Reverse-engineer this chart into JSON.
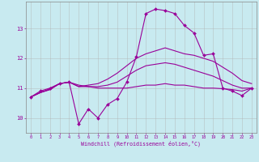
{
  "background_color": "#c8eaf0",
  "line_color": "#990099",
  "grid_color": "#b0b0b0",
  "xlabel": "Windchill (Refroidissement éolien,°C)",
  "xlim": [
    -0.5,
    23.5
  ],
  "ylim": [
    9.5,
    13.9
  ],
  "yticks": [
    10,
    11,
    12,
    13
  ],
  "xticks": [
    0,
    1,
    2,
    3,
    4,
    5,
    6,
    7,
    8,
    9,
    10,
    11,
    12,
    13,
    14,
    15,
    16,
    17,
    18,
    19,
    20,
    21,
    22,
    23
  ],
  "series1_x": [
    0,
    1,
    2,
    3,
    4,
    5,
    6,
    7,
    8,
    9,
    10,
    11,
    12,
    13,
    14,
    15,
    16,
    17,
    18,
    19,
    20,
    21,
    22,
    23
  ],
  "series1_y": [
    10.7,
    10.9,
    11.0,
    11.15,
    11.2,
    9.8,
    10.3,
    10.0,
    10.45,
    10.65,
    11.2,
    12.05,
    13.5,
    13.65,
    13.6,
    13.5,
    13.1,
    12.85,
    12.1,
    12.15,
    11.0,
    10.9,
    10.75,
    11.0
  ],
  "series2_x": [
    0,
    1,
    2,
    3,
    4,
    5,
    6,
    7,
    8,
    9,
    10,
    11,
    12,
    13,
    14,
    15,
    16,
    17,
    18,
    19,
    20,
    21,
    22,
    23
  ],
  "series2_y": [
    10.7,
    10.85,
    10.95,
    11.15,
    11.2,
    11.1,
    11.05,
    11.0,
    11.0,
    11.0,
    11.0,
    11.05,
    11.1,
    11.1,
    11.15,
    11.1,
    11.1,
    11.05,
    11.0,
    11.0,
    10.98,
    10.95,
    10.9,
    11.0
  ],
  "series3_x": [
    0,
    1,
    2,
    3,
    4,
    5,
    6,
    7,
    8,
    9,
    10,
    11,
    12,
    13,
    14,
    15,
    16,
    17,
    18,
    19,
    20,
    21,
    22,
    23
  ],
  "series3_y": [
    10.7,
    10.85,
    10.95,
    11.15,
    11.2,
    11.05,
    11.05,
    11.05,
    11.1,
    11.2,
    11.4,
    11.6,
    11.75,
    11.8,
    11.85,
    11.8,
    11.7,
    11.6,
    11.5,
    11.4,
    11.25,
    11.1,
    11.0,
    11.0
  ],
  "series4_x": [
    0,
    1,
    2,
    3,
    4,
    5,
    6,
    7,
    8,
    9,
    10,
    11,
    12,
    13,
    14,
    15,
    16,
    17,
    18,
    19,
    20,
    21,
    22,
    23
  ],
  "series4_y": [
    10.7,
    10.85,
    10.98,
    11.15,
    11.2,
    11.05,
    11.1,
    11.15,
    11.3,
    11.5,
    11.75,
    12.0,
    12.15,
    12.25,
    12.35,
    12.25,
    12.15,
    12.1,
    12.0,
    11.9,
    11.7,
    11.5,
    11.25,
    11.15
  ]
}
